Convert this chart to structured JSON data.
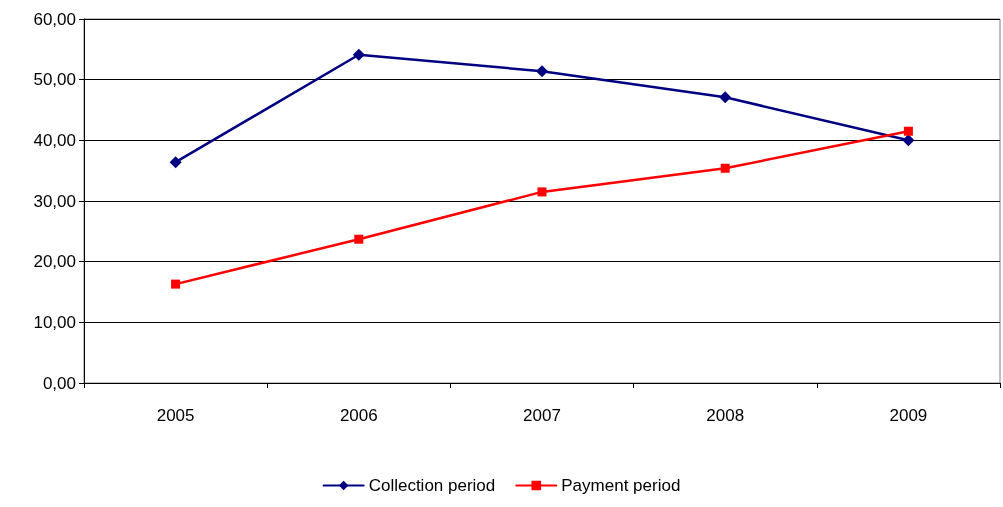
{
  "chart_data": {
    "type": "line",
    "categories": [
      "2005",
      "2006",
      "2007",
      "2008",
      "2009"
    ],
    "series": [
      {
        "name": "Collection period",
        "color": "#000080",
        "marker": "diamond",
        "values": [
          36.4,
          54.1,
          51.4,
          47.1,
          40.0
        ]
      },
      {
        "name": "Payment period",
        "color": "#ff0000",
        "marker": "square",
        "values": [
          16.3,
          23.7,
          31.5,
          35.4,
          41.5
        ]
      }
    ],
    "ylim": [
      0,
      60
    ],
    "yticks": [
      {
        "value": 0,
        "label": "0,00"
      },
      {
        "value": 10,
        "label": "10,00"
      },
      {
        "value": 20,
        "label": "20,00"
      },
      {
        "value": 30,
        "label": "30,00"
      },
      {
        "value": 40,
        "label": "40,00"
      },
      {
        "value": 50,
        "label": "50,00"
      },
      {
        "value": 60,
        "label": "60,00"
      }
    ],
    "grid": "y",
    "legend": "bottom",
    "line_style": "solid"
  }
}
